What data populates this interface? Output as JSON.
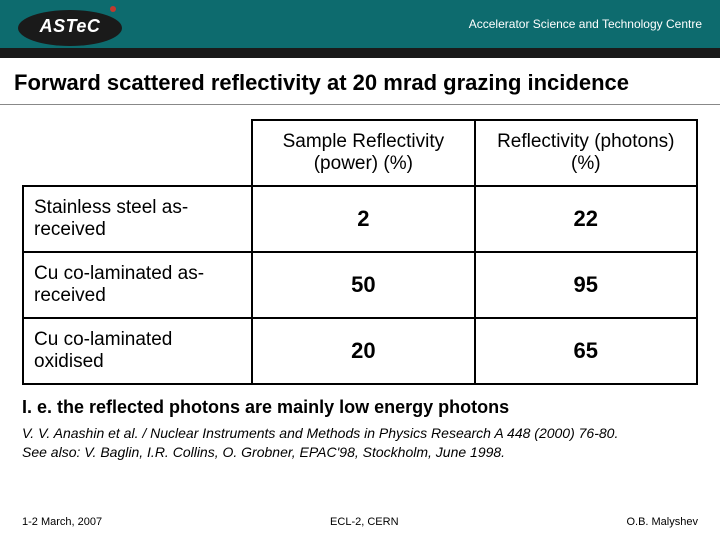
{
  "header": {
    "logo_text": "ASTeC",
    "tagline": "Accelerator Science and Technology Centre"
  },
  "title": "Forward scattered reflectivity at 20 mrad grazing incidence",
  "table": {
    "columns": [
      "",
      "Sample Reflectivity (power) (%)",
      "Reflectivity (photons) (%)"
    ],
    "rows": [
      {
        "label": "Stainless steel as-received",
        "power": "2",
        "photons": "22"
      },
      {
        "label": "Cu co-laminated as-received",
        "power": "50",
        "photons": "95"
      },
      {
        "label": "Cu co-laminated oxidised",
        "power": "20",
        "photons": "65"
      }
    ]
  },
  "note": "I. e. the reflected photons are mainly low energy photons",
  "refs": {
    "line1": "V. V. Anashin et al. / Nuclear Instruments and Methods in Physics Research A 448 (2000) 76-80.",
    "line2": "See also: V. Baglin, I.R. Collins, O. Grobner, EPAC'98, Stockholm, June 1998."
  },
  "footer": {
    "left": "1-2 March, 2007",
    "center": "ECL-2, CERN",
    "right": "O.B. Malyshev"
  },
  "colors": {
    "teal": "#0d6b6e",
    "dark": "#1a1a1a",
    "red": "#c23a2e"
  }
}
